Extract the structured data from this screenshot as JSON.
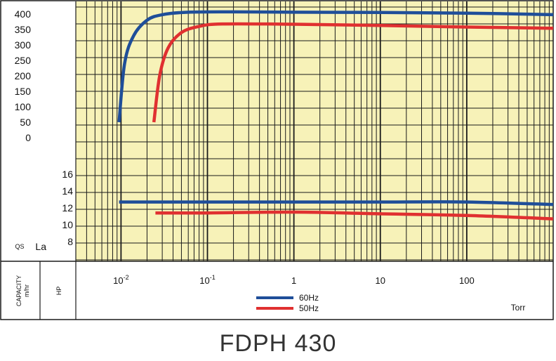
{
  "title": "FDPH 430",
  "chart_data": [
    {
      "type": "line",
      "panel": "capacity",
      "ylabel": "QS",
      "yticks": [
        "400",
        "350",
        "300",
        "250",
        "200",
        "150",
        "100",
        "50",
        "0"
      ],
      "ylim": [
        0,
        400
      ],
      "x_scale": "log",
      "xlim": [
        0.003,
        1000
      ],
      "series": [
        {
          "name": "60Hz",
          "color": "#1f4e99",
          "points": [
            [
              0.0095,
              50
            ],
            [
              0.011,
              240
            ],
            [
              0.014,
              330
            ],
            [
              0.02,
              380
            ],
            [
              0.03,
              398
            ],
            [
              0.06,
              406
            ],
            [
              0.2,
              407
            ],
            [
              1,
              406
            ],
            [
              10,
              405
            ],
            [
              100,
              403
            ],
            [
              1000,
              398
            ]
          ]
        },
        {
          "name": "50Hz",
          "color": "#e03030",
          "points": [
            [
              0.024,
              50
            ],
            [
              0.028,
              200
            ],
            [
              0.035,
              290
            ],
            [
              0.05,
              340
            ],
            [
              0.08,
              360
            ],
            [
              0.15,
              368
            ],
            [
              1,
              367
            ],
            [
              10,
              363
            ],
            [
              100,
              358
            ],
            [
              1000,
              354
            ]
          ]
        }
      ]
    },
    {
      "type": "line",
      "panel": "power",
      "ylabel": "La",
      "yticks": [
        "16",
        "14",
        "12",
        "10",
        "8"
      ],
      "ylim": [
        8,
        16
      ],
      "x_scale": "log",
      "xlim": [
        0.003,
        1000
      ],
      "series": [
        {
          "name": "60Hz",
          "color": "#1f4e99",
          "points": [
            [
              0.0095,
              12.7
            ],
            [
              0.1,
              12.7
            ],
            [
              1,
              12.7
            ],
            [
              10,
              12.7
            ],
            [
              100,
              12.7
            ],
            [
              1000,
              12.4
            ]
          ]
        },
        {
          "name": "50Hz",
          "color": "#e03030",
          "points": [
            [
              0.025,
              11.4
            ],
            [
              0.1,
              11.4
            ],
            [
              1,
              11.5
            ],
            [
              10,
              11.3
            ],
            [
              100,
              11.1
            ],
            [
              1000,
              10.7
            ]
          ]
        }
      ]
    }
  ],
  "x_axis": {
    "ticks": [
      {
        "value": 0.01,
        "base": "10",
        "exp": "-2"
      },
      {
        "value": 0.1,
        "base": "10",
        "exp": "-1"
      },
      {
        "value": 1,
        "base": "1",
        "exp": ""
      },
      {
        "value": 10,
        "base": "10",
        "exp": ""
      },
      {
        "value": 100,
        "base": "100",
        "exp": ""
      }
    ],
    "unit": "Torr"
  },
  "side_labels": {
    "capacity": "CAPACITY",
    "capacity_unit": "m/hr",
    "hp": "HP"
  },
  "legend": [
    {
      "label": "60Hz",
      "color": "#1f4e99"
    },
    {
      "label": "50Hz",
      "color": "#e03030"
    }
  ],
  "colors": {
    "plot_background": "#f7f2b8",
    "grid": "#1a1a1a",
    "frame": "#1a1a1a"
  }
}
